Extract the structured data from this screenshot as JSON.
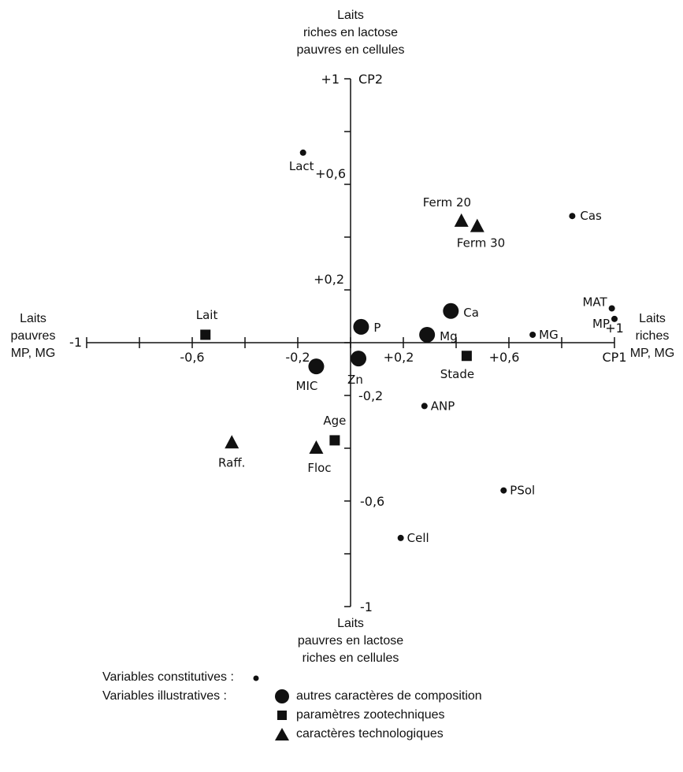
{
  "chart_data": {
    "type": "scatter",
    "xlim": [
      -1,
      1
    ],
    "ylim": [
      -1,
      1
    ],
    "grid": false,
    "axis_labels": {
      "x_name": "CP1",
      "y_name": "CP2",
      "x_ticks": [
        "-1",
        "-0,6",
        "-0,2",
        "+0,2",
        "+0,6",
        "+1"
      ],
      "y_ticks": [
        "+1",
        "+0,6",
        "+0,2",
        "-0,2",
        "-0,6",
        "-1"
      ]
    },
    "poles": {
      "top": [
        "Laits",
        "riches en lactose",
        "pauvres en cellules"
      ],
      "bottom": [
        "Laits",
        "pauvres en lactose",
        "riches en cellules"
      ],
      "left": [
        "Laits",
        "pauvres",
        "MP, MG"
      ],
      "right": [
        "Laits",
        "riches",
        "MP, MG"
      ]
    },
    "groups": [
      {
        "name": "Variables constitutives",
        "marker": "small-dot",
        "points": [
          {
            "label": "Lact",
            "x": -0.18,
            "y": 0.72
          },
          {
            "label": "Cas",
            "x": 0.84,
            "y": 0.48
          },
          {
            "label": "MAT",
            "x": 0.99,
            "y": 0.13
          },
          {
            "label": "MP",
            "x": 1.0,
            "y": 0.09
          },
          {
            "label": "MG",
            "x": 0.69,
            "y": 0.03
          },
          {
            "label": "ANP",
            "x": 0.28,
            "y": -0.24
          },
          {
            "label": "PSol",
            "x": 0.58,
            "y": -0.56
          },
          {
            "label": "Cell",
            "x": 0.19,
            "y": -0.74
          }
        ]
      },
      {
        "name": "autres caractères de composition",
        "marker": "large-dot",
        "points": [
          {
            "label": "P",
            "x": 0.04,
            "y": 0.06
          },
          {
            "label": "Ca",
            "x": 0.38,
            "y": 0.12
          },
          {
            "label": "Mg",
            "x": 0.29,
            "y": 0.03
          },
          {
            "label": "MIC",
            "x": -0.13,
            "y": -0.09
          },
          {
            "label": "Zn",
            "x": 0.03,
            "y": -0.06
          }
        ]
      },
      {
        "name": "paramètres zootechniques",
        "marker": "square",
        "points": [
          {
            "label": "Lait",
            "x": -0.55,
            "y": 0.03
          },
          {
            "label": "Stade",
            "x": 0.44,
            "y": -0.05
          },
          {
            "label": "Age",
            "x": -0.06,
            "y": -0.37
          }
        ]
      },
      {
        "name": "caractères technologiques",
        "marker": "triangle",
        "points": [
          {
            "label": "Ferm 20",
            "x": 0.42,
            "y": 0.46
          },
          {
            "label": "Ferm 30",
            "x": 0.48,
            "y": 0.44
          },
          {
            "label": "Raff.",
            "x": -0.45,
            "y": -0.38
          },
          {
            "label": "Floc",
            "x": -0.13,
            "y": -0.4
          }
        ]
      }
    ]
  },
  "legend": {
    "constitutive_label": "Variables constitutives :",
    "illustrative_label": "Variables illustratives :",
    "items": [
      "autres caractères de composition",
      "paramètres zootechniques",
      "caractères technologiques"
    ]
  },
  "colors": {
    "ink": "#111111",
    "background": "#ffffff"
  }
}
